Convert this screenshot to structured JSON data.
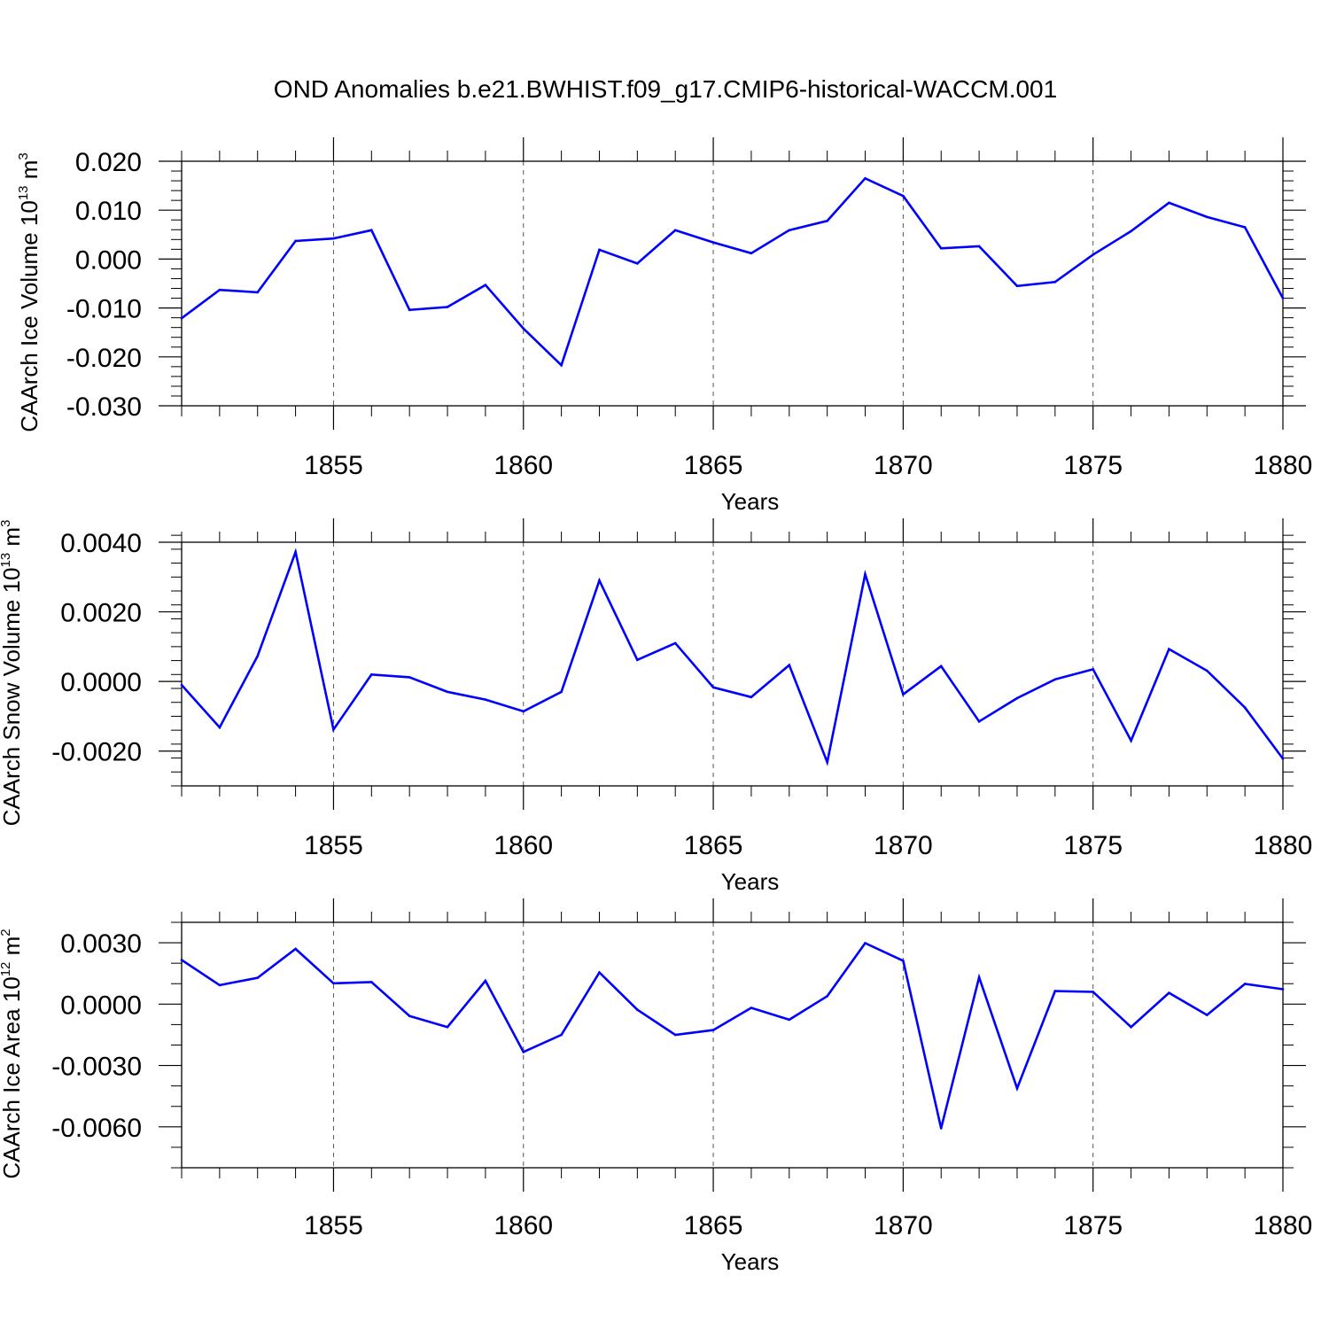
{
  "title": "OND Anomalies b.e21.BWHIST.f09_g17.CMIP6-historical-WACCM.001",
  "colors": {
    "line": "#0000ff",
    "axis": "#000000",
    "grid": "#555555",
    "background": "#ffffff"
  },
  "chart_data": [
    {
      "type": "line",
      "title": "OND Anomalies b.e21.BWHIST.f09_g17.CMIP6-historical-WACCM.001",
      "xlabel": "Years",
      "ylabel": {
        "text": "CAArch Ice Volume 10",
        "sup1": "13",
        "unit": " m",
        "sup2": "3"
      },
      "xlim": [
        1851,
        1880
      ],
      "ylim": [
        -0.03,
        0.02
      ],
      "xticks": [
        1855,
        1860,
        1865,
        1870,
        1875,
        1880
      ],
      "xtick_labels": [
        "1855",
        "1860",
        "1865",
        "1870",
        "1875",
        "1880"
      ],
      "yticks": [
        -0.03,
        -0.02,
        -0.01,
        0.0,
        0.01,
        0.02
      ],
      "ytick_labels": [
        "-0.030",
        "-0.020",
        "-0.010",
        "0.000",
        "0.010",
        "0.020"
      ],
      "x_minor_step": 1,
      "y_minor_step": 0.002,
      "grid": "x dashed at major ticks",
      "series": [
        {
          "name": "CAArch Ice Volume",
          "x": [
            1851,
            1852,
            1853,
            1854,
            1855,
            1856,
            1857,
            1858,
            1859,
            1860,
            1861,
            1862,
            1863,
            1864,
            1865,
            1866,
            1867,
            1868,
            1869,
            1870,
            1871,
            1872,
            1873,
            1874,
            1875,
            1876,
            1877,
            1878,
            1879,
            1880
          ],
          "values": [
            -0.0121,
            -0.0063,
            -0.0068,
            0.0037,
            0.0042,
            0.0059,
            -0.0104,
            -0.0098,
            -0.0053,
            -0.0142,
            -0.0217,
            0.0019,
            -0.0009,
            0.0059,
            0.0034,
            0.0012,
            0.0059,
            0.0078,
            0.0165,
            0.0129,
            0.0022,
            0.0026,
            -0.0055,
            -0.0047,
            0.0009,
            0.0057,
            0.0115,
            0.0086,
            0.0065,
            -0.008
          ]
        }
      ]
    },
    {
      "type": "line",
      "xlabel": "Years",
      "ylabel": {
        "text": "CAArch Snow Volume 10",
        "sup1": "13",
        "unit": " m",
        "sup2": "3"
      },
      "xlim": [
        1851,
        1880
      ],
      "ylim": [
        -0.003,
        0.004
      ],
      "xticks": [
        1855,
        1860,
        1865,
        1870,
        1875,
        1880
      ],
      "xtick_labels": [
        "1855",
        "1860",
        "1865",
        "1870",
        "1875",
        "1880"
      ],
      "yticks": [
        -0.002,
        0.0,
        0.002,
        0.004
      ],
      "ytick_labels": [
        "-0.0020",
        "0.0000",
        "0.0020",
        "0.0040"
      ],
      "x_minor_step": 1,
      "y_minor_step": 0.0004,
      "grid": "x dashed at major ticks",
      "series": [
        {
          "name": "CAArch Snow Volume",
          "x": [
            1851,
            1852,
            1853,
            1854,
            1855,
            1856,
            1857,
            1858,
            1859,
            1860,
            1861,
            1862,
            1863,
            1864,
            1865,
            1866,
            1867,
            1868,
            1869,
            1870,
            1871,
            1872,
            1873,
            1874,
            1875,
            1876,
            1877,
            1878,
            1879,
            1880
          ],
          "values": [
            -0.0001,
            -0.00132,
            0.00073,
            0.00372,
            -0.00138,
            0.0002,
            0.00012,
            -0.0003,
            -0.00052,
            -0.00086,
            -0.0003,
            0.0029,
            0.00062,
            0.0011,
            -0.00017,
            -0.00045,
            0.00047,
            -0.00232,
            0.00308,
            -0.00037,
            0.00044,
            -0.00115,
            -0.00048,
            6e-05,
            0.00035,
            -0.0017,
            0.00093,
            0.00031,
            -0.00075,
            -0.00222
          ]
        }
      ]
    },
    {
      "type": "line",
      "xlabel": "Years",
      "ylabel": {
        "text": "CAArch Ice Area 10",
        "sup1": "12",
        "unit": " m",
        "sup2": "2"
      },
      "xlim": [
        1851,
        1880
      ],
      "ylim": [
        -0.008,
        0.004
      ],
      "xticks": [
        1855,
        1860,
        1865,
        1870,
        1875,
        1880
      ],
      "xtick_labels": [
        "1855",
        "1860",
        "1865",
        "1870",
        "1875",
        "1880"
      ],
      "yticks": [
        -0.006,
        -0.003,
        0.0,
        0.003
      ],
      "ytick_labels": [
        "-0.0060",
        "-0.0030",
        "0.0000",
        "0.0030"
      ],
      "x_minor_step": 1,
      "y_minor_step": 0.001,
      "grid": "x dashed at major ticks",
      "series": [
        {
          "name": "CAArch Ice Area",
          "x": [
            1851,
            1852,
            1853,
            1854,
            1855,
            1856,
            1857,
            1858,
            1859,
            1860,
            1861,
            1862,
            1863,
            1864,
            1865,
            1866,
            1867,
            1868,
            1869,
            1870,
            1871,
            1872,
            1873,
            1874,
            1875,
            1876,
            1877,
            1878,
            1879,
            1880
          ],
          "values": [
            0.00216,
            0.00093,
            0.00129,
            0.0027,
            0.00102,
            0.00108,
            -0.00058,
            -0.00112,
            0.00114,
            -0.00234,
            -0.0015,
            0.00155,
            -0.00027,
            -0.0015,
            -0.00127,
            -0.00018,
            -0.00076,
            0.00039,
            0.00298,
            0.00212,
            -0.00607,
            0.00131,
            -0.00412,
            0.00064,
            0.0006,
            -0.00112,
            0.00055,
            -0.00053,
            0.00099,
            0.00073
          ]
        }
      ]
    }
  ]
}
